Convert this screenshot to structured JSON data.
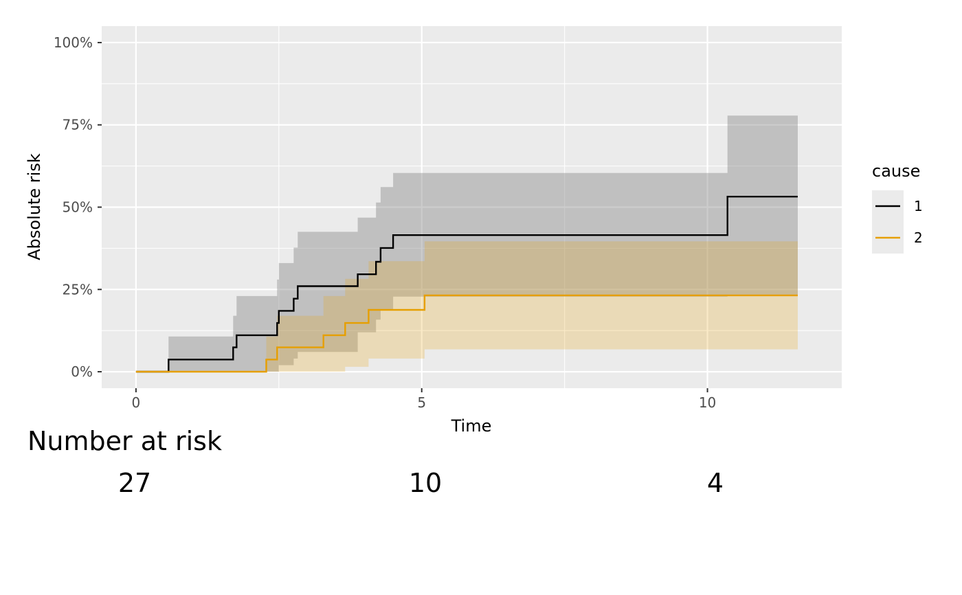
{
  "chart_data": {
    "type": "line",
    "xlabel": "Time",
    "ylabel": "Absolute risk",
    "xlim": [
      -0.6,
      12.35
    ],
    "ylim": [
      -0.05,
      1.05
    ],
    "x_ticks": [
      0,
      5,
      10
    ],
    "x_tick_labels": [
      "0",
      "5",
      "10"
    ],
    "y_ticks": [
      0,
      0.25,
      0.5,
      0.75,
      1.0
    ],
    "y_tick_labels": [
      "0%",
      "25%",
      "50%",
      "75%",
      "100%"
    ],
    "grid": true,
    "panel_background": "#ebebeb",
    "legend": {
      "title": "cause",
      "position": "right",
      "entries": [
        {
          "label": "1",
          "color": "#000000"
        },
        {
          "label": "2",
          "color": "#E69F00"
        }
      ]
    },
    "series": [
      {
        "name": "1",
        "color": "#000000",
        "band_color": "#808080",
        "steps": [
          {
            "x": 0.0,
            "y": 0.0,
            "lo": 0.0,
            "hi": 0.0
          },
          {
            "x": 0.57,
            "y": 0.037,
            "lo": 0.0,
            "hi": 0.107
          },
          {
            "x": 1.7,
            "y": 0.074,
            "lo": 0.0,
            "hi": 0.17
          },
          {
            "x": 1.76,
            "y": 0.111,
            "lo": 0.0,
            "hi": 0.23
          },
          {
            "x": 2.47,
            "y": 0.148,
            "lo": 0.0,
            "hi": 0.28
          },
          {
            "x": 2.5,
            "y": 0.185,
            "lo": 0.02,
            "hi": 0.33
          },
          {
            "x": 2.76,
            "y": 0.222,
            "lo": 0.04,
            "hi": 0.377
          },
          {
            "x": 2.83,
            "y": 0.26,
            "lo": 0.06,
            "hi": 0.425
          },
          {
            "x": 3.88,
            "y": 0.296,
            "lo": 0.12,
            "hi": 0.468
          },
          {
            "x": 4.2,
            "y": 0.334,
            "lo": 0.158,
            "hi": 0.514
          },
          {
            "x": 4.28,
            "y": 0.376,
            "lo": 0.188,
            "hi": 0.561
          },
          {
            "x": 4.5,
            "y": 0.415,
            "lo": 0.228,
            "hi": 0.604
          },
          {
            "x": 10.35,
            "y": 0.532,
            "lo": 0.23,
            "hi": 0.778
          },
          {
            "x": 11.58,
            "y": 0.532,
            "lo": 0.23,
            "hi": 0.778
          }
        ]
      },
      {
        "name": "2",
        "color": "#E69F00",
        "band_color": "#E69F00",
        "steps": [
          {
            "x": 0.0,
            "y": 0.0,
            "lo": 0.0,
            "hi": 0.0
          },
          {
            "x": 2.28,
            "y": 0.037,
            "lo": 0.0,
            "hi": 0.107
          },
          {
            "x": 2.47,
            "y": 0.074,
            "lo": 0.0,
            "hi": 0.17
          },
          {
            "x": 3.28,
            "y": 0.111,
            "lo": 0.0,
            "hi": 0.23
          },
          {
            "x": 3.66,
            "y": 0.148,
            "lo": 0.015,
            "hi": 0.282
          },
          {
            "x": 4.07,
            "y": 0.188,
            "lo": 0.04,
            "hi": 0.336
          },
          {
            "x": 5.05,
            "y": 0.232,
            "lo": 0.068,
            "hi": 0.396
          },
          {
            "x": 10.35,
            "y": 0.232,
            "lo": 0.068,
            "hi": 0.396
          },
          {
            "x": 11.58,
            "y": 0.232,
            "lo": 0.068,
            "hi": 0.396
          }
        ]
      }
    ]
  },
  "risk_table": {
    "title": "Number at risk",
    "times": [
      0,
      5,
      10
    ],
    "counts": [
      "27",
      "10",
      "4"
    ]
  }
}
